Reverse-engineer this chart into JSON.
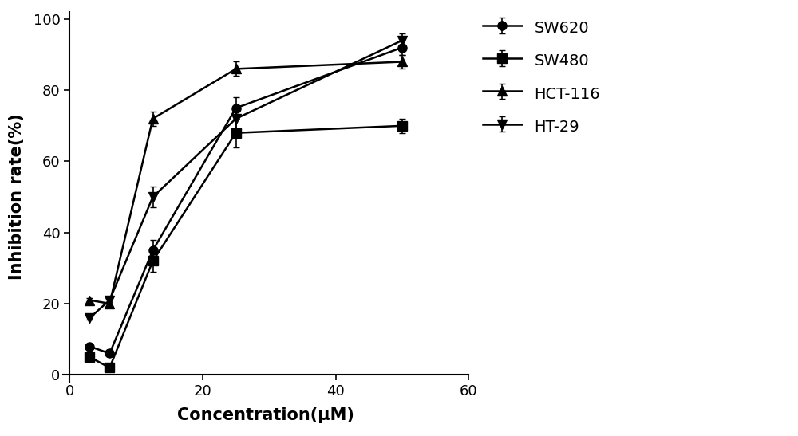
{
  "x": [
    3,
    6,
    12.5,
    25,
    50
  ],
  "SW620": [
    8,
    6,
    35,
    75,
    92
  ],
  "SW480": [
    5,
    2,
    32,
    68,
    70
  ],
  "HCT116": [
    21,
    20,
    72,
    86,
    88
  ],
  "HT29": [
    16,
    21,
    50,
    72,
    94
  ],
  "SW620_err": [
    0.5,
    0.5,
    3,
    3,
    2
  ],
  "SW480_err": [
    0.5,
    0.5,
    3,
    4,
    2
  ],
  "HCT116_err": [
    0.5,
    0.5,
    2,
    2,
    2
  ],
  "HT29_err": [
    0.5,
    0.5,
    3,
    3,
    2
  ],
  "xlabel": "Concentration(μM)",
  "ylabel": "Inhibition rate(%)",
  "xlim": [
    -1,
    60
  ],
  "ylim": [
    -2,
    102
  ],
  "xticks": [
    0,
    20,
    40,
    60
  ],
  "yticks": [
    0,
    20,
    40,
    60,
    80,
    100
  ],
  "line_color": "#000000",
  "legend_labels": [
    "SW620",
    "SW480",
    "HCT-116",
    "HT-29"
  ],
  "markers": [
    "o",
    "s",
    "^",
    "v"
  ],
  "linewidth": 1.8,
  "markersize": 8,
  "figsize": [
    10.0,
    5.47
  ],
  "dpi": 100
}
